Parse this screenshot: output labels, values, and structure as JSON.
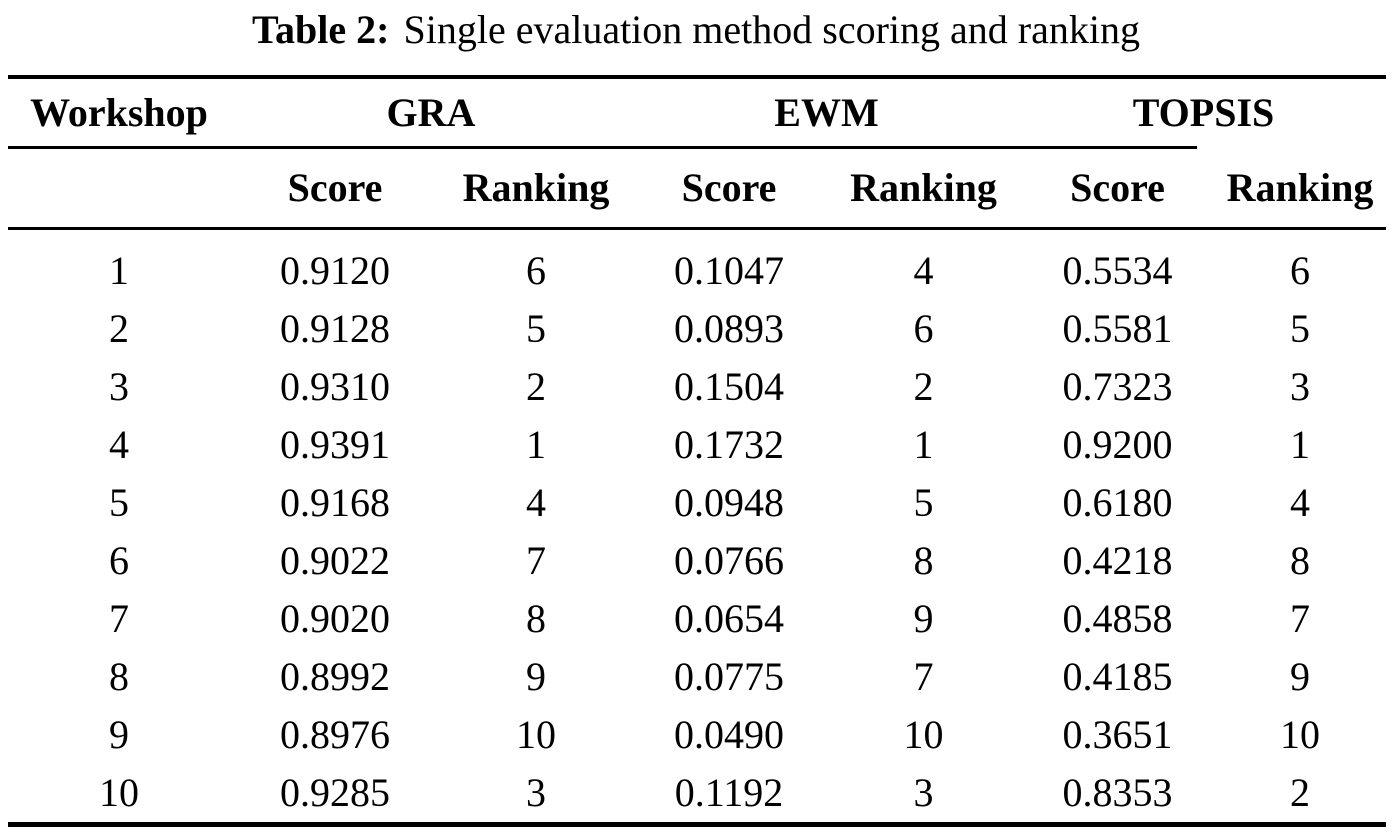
{
  "caption": {
    "label": "Table 2:",
    "text": "Single evaluation method scoring and ranking"
  },
  "table": {
    "workshop_header": "Workshop",
    "groups": [
      "GRA",
      "EWM",
      "TOPSIS"
    ],
    "sub_headers": [
      "Score",
      "Ranking",
      "Score",
      "Ranking",
      "Score",
      "Ranking"
    ],
    "rows": [
      [
        "1",
        "0.9120",
        "6",
        "0.1047",
        "4",
        "0.5534",
        "6"
      ],
      [
        "2",
        "0.9128",
        "5",
        "0.0893",
        "6",
        "0.5581",
        "5"
      ],
      [
        "3",
        "0.9310",
        "2",
        "0.1504",
        "2",
        "0.7323",
        "3"
      ],
      [
        "4",
        "0.9391",
        "1",
        "0.1732",
        "1",
        "0.9200",
        "1"
      ],
      [
        "5",
        "0.9168",
        "4",
        "0.0948",
        "5",
        "0.6180",
        "4"
      ],
      [
        "6",
        "0.9022",
        "7",
        "0.0766",
        "8",
        "0.4218",
        "8"
      ],
      [
        "7",
        "0.9020",
        "8",
        "0.0654",
        "9",
        "0.4858",
        "7"
      ],
      [
        "8",
        "0.8992",
        "9",
        "0.0775",
        "7",
        "0.4185",
        "9"
      ],
      [
        "9",
        "0.8976",
        "10",
        "0.0490",
        "10",
        "0.3651",
        "10"
      ],
      [
        "10",
        "0.9285",
        "3",
        "0.1192",
        "3",
        "0.8353",
        "2"
      ]
    ]
  }
}
